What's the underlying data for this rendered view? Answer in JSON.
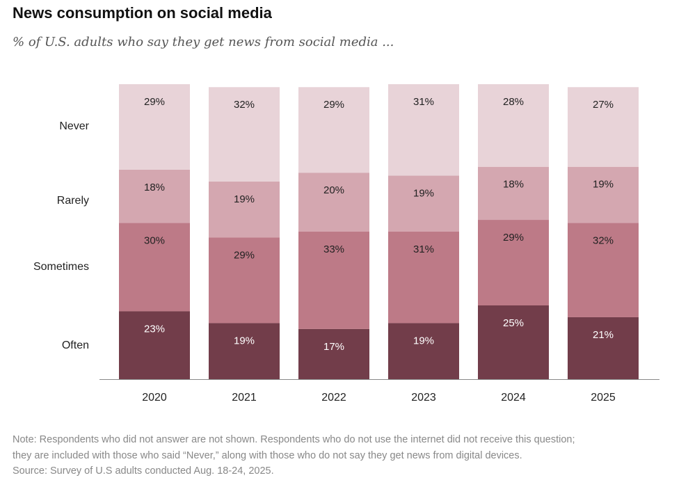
{
  "title": "News consumption on social media",
  "subtitle": "% of U.S. adults who say they get news from social media ...",
  "notes": {
    "note_line1": "Note: Respondents who did not answer are not shown. Respondents who do not use the internet did not receive this question;",
    "note_line2": "they are included with those who said “Never,” along with those who do not say they get news from digital devices.",
    "source": "Source: Survey of U.S adults conducted Aug. 18-24, 2025."
  },
  "chart_data": {
    "type": "bar",
    "stacked": true,
    "categories": [
      "2020",
      "2021",
      "2022",
      "2023",
      "2024",
      "2025"
    ],
    "series": [
      {
        "name": "Often",
        "values": [
          23,
          19,
          17,
          19,
          25,
          21
        ],
        "color": "#723d4a"
      },
      {
        "name": "Sometimes",
        "values": [
          30,
          29,
          33,
          31,
          29,
          32
        ],
        "color": "#bd7a87"
      },
      {
        "name": "Rarely",
        "values": [
          18,
          19,
          20,
          19,
          18,
          19
        ],
        "color": "#d4a7b0"
      },
      {
        "name": "Never",
        "values": [
          29,
          32,
          29,
          31,
          28,
          27
        ],
        "color": "#e8d3d8"
      }
    ],
    "label_suffix": "%",
    "ylim": [
      0,
      100
    ],
    "grid": false,
    "legend": "left labels"
  }
}
